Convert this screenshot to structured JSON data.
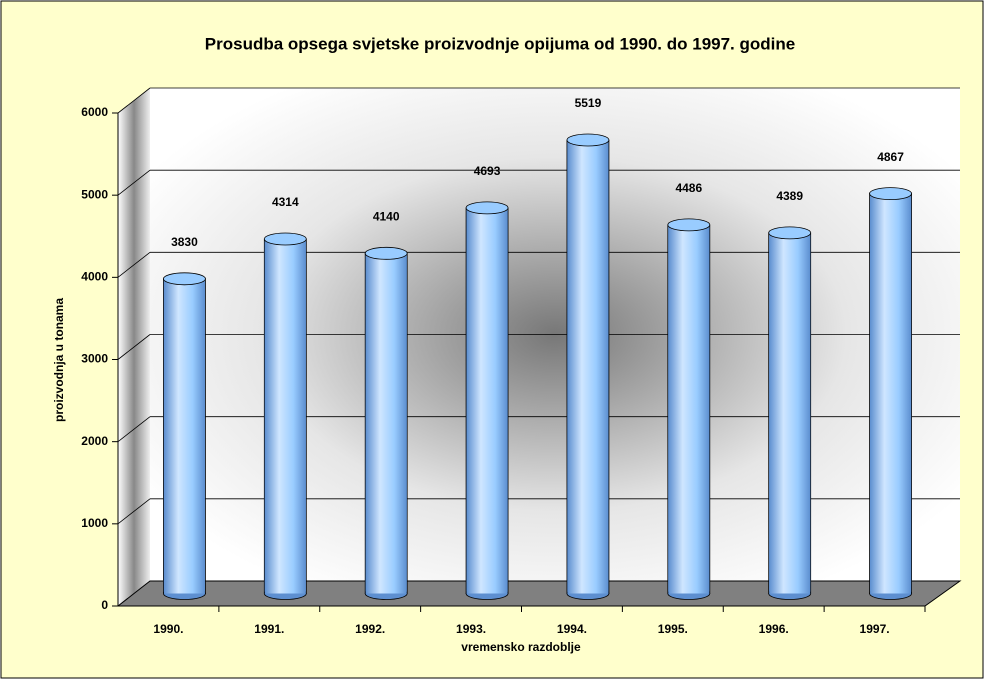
{
  "chart_data": {
    "type": "bar",
    "title": "Prosudba opsega svjetske proizvodnje opijuma od 1990. do 1997. godine",
    "y_label": "proizvodnja u tonama",
    "x_label": "vremensko razdoblje",
    "categories": [
      "1990.",
      "1991.",
      "1992.",
      "1993.",
      "1994.",
      "1995.",
      "1996.",
      "1997."
    ],
    "values": [
      3830,
      4314,
      4140,
      4693,
      5519,
      4486,
      4389,
      4867
    ],
    "color": "#99ccff",
    "ylim": [
      0,
      6000
    ],
    "yticks": [
      0,
      1000,
      2000,
      3000,
      4000,
      5000,
      6000
    ],
    "grid": true
  }
}
